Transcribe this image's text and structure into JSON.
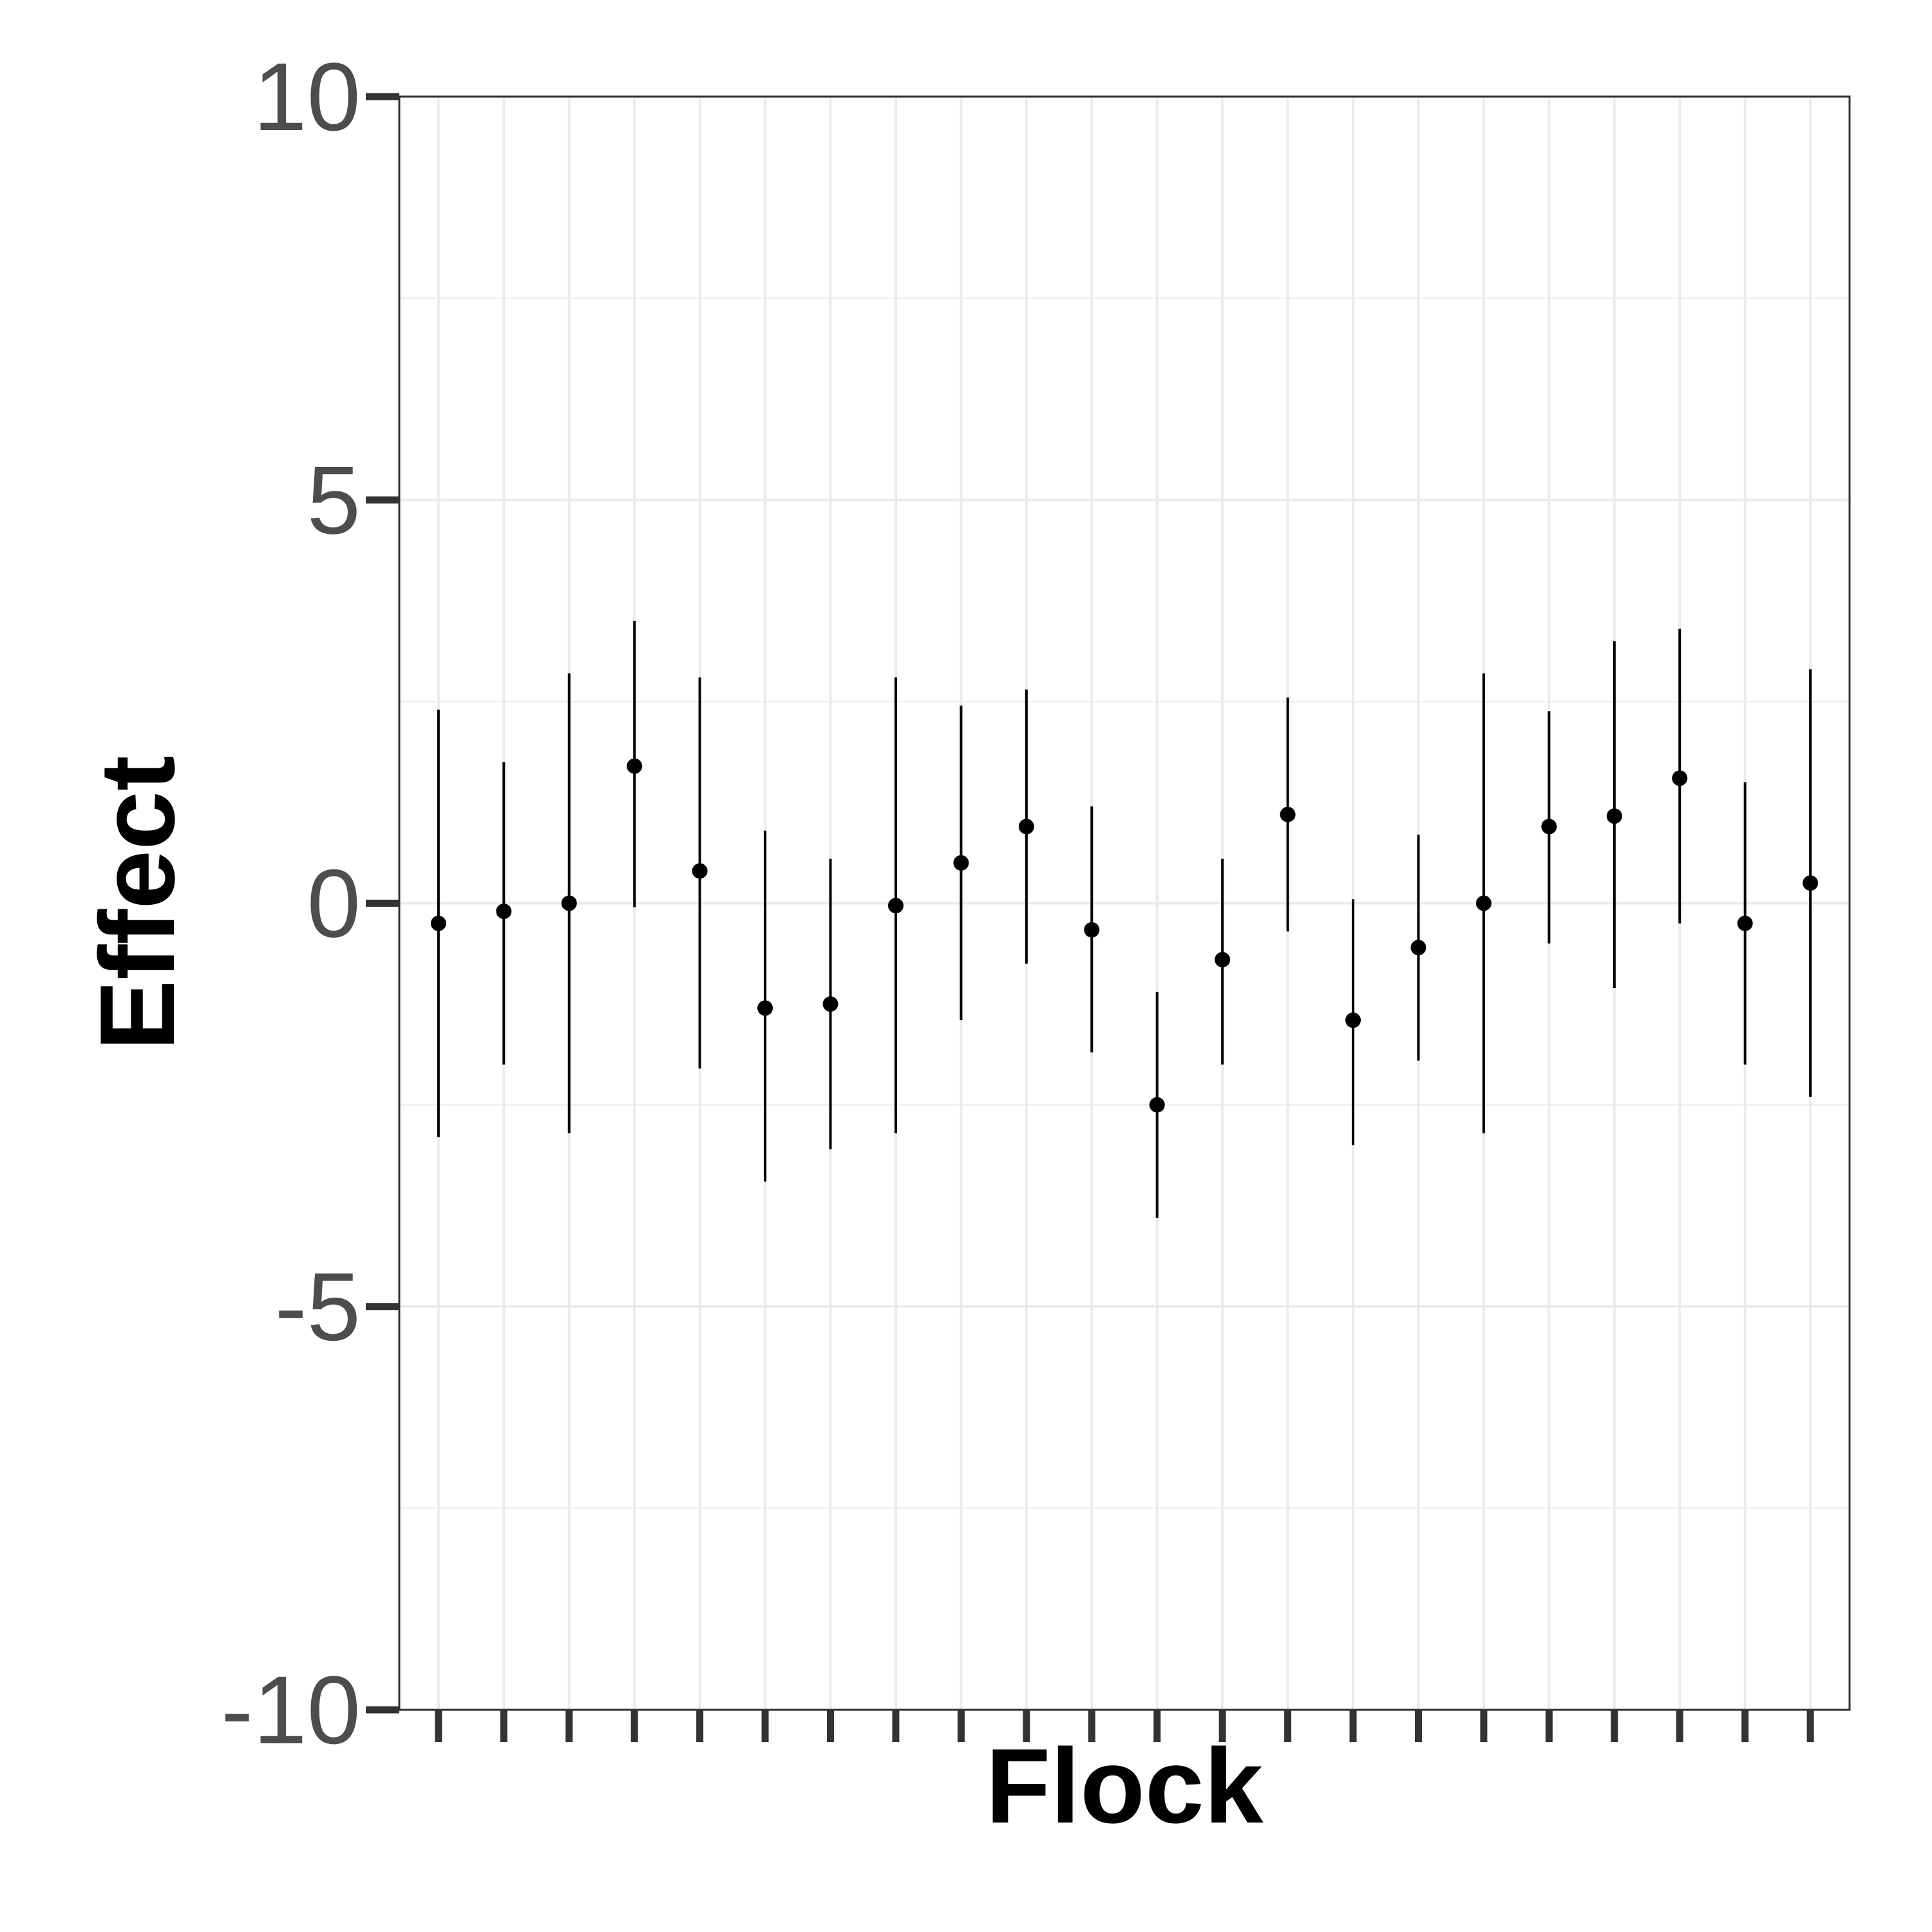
{
  "chart_data": {
    "type": "errorbar",
    "title": "",
    "xlabel": "Flock",
    "ylabel": "Effect",
    "ylim": [
      -10,
      10
    ],
    "yticks": [
      -10,
      -5,
      0,
      5,
      10
    ],
    "ytick_labels": [
      "-10",
      "-5",
      "0",
      "5",
      "10"
    ],
    "x_tick_labels_visible": false,
    "grid": true,
    "legend": "none",
    "colors": {
      "point": "#000000",
      "errorbar": "#000000",
      "grid": "#ebebeb",
      "panel_border": "#333333",
      "tick": "#333333"
    },
    "points": [
      {
        "x": 1,
        "y": -0.25,
        "lower": -2.9,
        "upper": 2.4
      },
      {
        "x": 2,
        "y": -0.1,
        "lower": -2.0,
        "upper": 1.75
      },
      {
        "x": 3,
        "y": 0.0,
        "lower": -2.85,
        "upper": 2.85
      },
      {
        "x": 4,
        "y": 1.7,
        "lower": -0.05,
        "upper": 3.5
      },
      {
        "x": 5,
        "y": 0.4,
        "lower": -2.05,
        "upper": 2.8
      },
      {
        "x": 6,
        "y": -1.3,
        "lower": -3.45,
        "upper": 0.9
      },
      {
        "x": 7,
        "y": -1.25,
        "lower": -3.05,
        "upper": 0.55
      },
      {
        "x": 8,
        "y": -0.03,
        "lower": -2.85,
        "upper": 2.8
      },
      {
        "x": 9,
        "y": 0.5,
        "lower": -1.45,
        "upper": 2.45
      },
      {
        "x": 10,
        "y": 0.95,
        "lower": -0.75,
        "upper": 2.65
      },
      {
        "x": 11,
        "y": -0.33,
        "lower": -1.85,
        "upper": 1.2
      },
      {
        "x": 12,
        "y": -2.5,
        "lower": -3.9,
        "upper": -1.1
      },
      {
        "x": 13,
        "y": -0.7,
        "lower": -2.0,
        "upper": 0.55
      },
      {
        "x": 14,
        "y": 1.1,
        "lower": -0.35,
        "upper": 2.55
      },
      {
        "x": 15,
        "y": -1.45,
        "lower": -3.0,
        "upper": 0.05
      },
      {
        "x": 16,
        "y": -0.55,
        "lower": -1.95,
        "upper": 0.85
      },
      {
        "x": 17,
        "y": 0.0,
        "lower": -2.85,
        "upper": 2.85
      },
      {
        "x": 18,
        "y": 0.95,
        "lower": -0.5,
        "upper": 2.38
      },
      {
        "x": 19,
        "y": 1.08,
        "lower": -1.05,
        "upper": 3.25
      },
      {
        "x": 20,
        "y": 1.55,
        "lower": -0.25,
        "upper": 3.4
      },
      {
        "x": 21,
        "y": -0.25,
        "lower": -2.0,
        "upper": 1.5
      },
      {
        "x": 22,
        "y": 0.25,
        "lower": -2.4,
        "upper": 2.9
      }
    ]
  }
}
